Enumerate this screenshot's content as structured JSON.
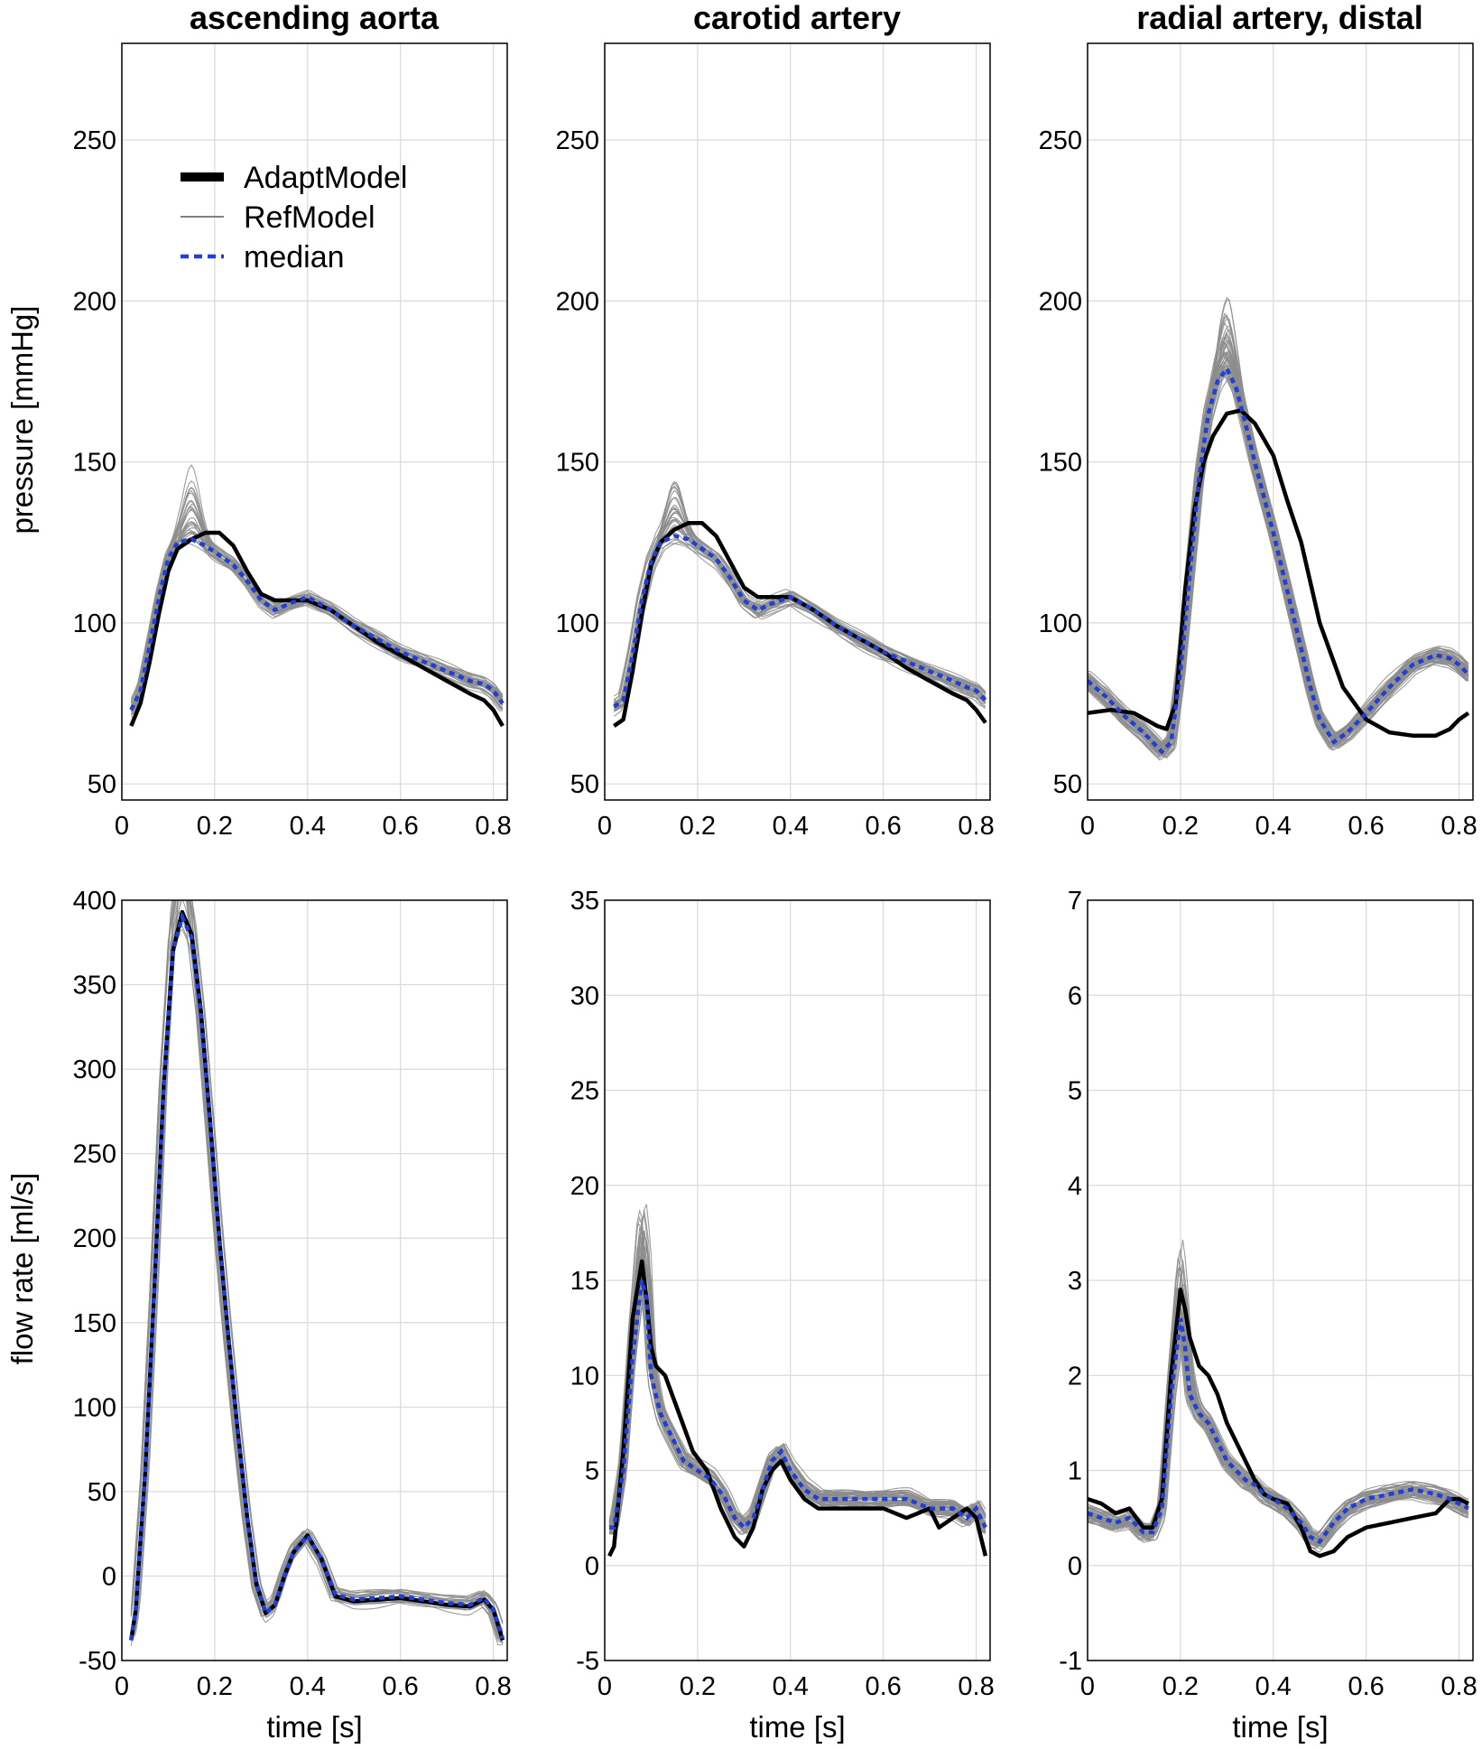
{
  "figure": {
    "column_titles": [
      "ascending aorta",
      "carotid artery",
      "radial artery, distal"
    ],
    "ylabel_top": "pressure [mmHg]",
    "ylabel_bottom": "flow rate  [ml/s]",
    "xlabel": "time [s]"
  },
  "legend": {
    "placement": "upper-left of top-left panel",
    "entries": [
      {
        "label": "AdaptModel",
        "color": "#000000",
        "style": "thick solid"
      },
      {
        "label": "RefModel",
        "color": "#808080",
        "style": "thin solid"
      },
      {
        "label": "median",
        "color": "#1f3fd6",
        "style": "dashed"
      }
    ]
  },
  "colors": {
    "adapt": "#000000",
    "ref": "#8c8c8c",
    "median": "#1f3fd6",
    "grid": "#d9d9d9"
  },
  "chart_data": [
    {
      "type": "line",
      "panel": "pressure-ascending-aorta",
      "title": "ascending aorta",
      "xlabel": "",
      "ylabel": "pressure [mmHg]",
      "xlim": [
        0,
        0.83
      ],
      "ylim": [
        45,
        280
      ],
      "xticks": [
        0,
        0.2,
        0.4,
        0.6,
        0.8
      ],
      "xtick_labels": [
        "0",
        "0.2",
        "0.4",
        "0.6",
        "0.8"
      ],
      "yticks": [
        50,
        100,
        150,
        200,
        250
      ],
      "ytick_labels": [
        "50",
        "100",
        "150",
        "200",
        "250"
      ],
      "grid": true,
      "ref_count": 30,
      "series": [
        {
          "name": "AdaptModel",
          "x": [
            0.02,
            0.04,
            0.06,
            0.08,
            0.1,
            0.12,
            0.15,
            0.18,
            0.21,
            0.24,
            0.27,
            0.3,
            0.33,
            0.36,
            0.4,
            0.45,
            0.5,
            0.55,
            0.6,
            0.65,
            0.7,
            0.75,
            0.78,
            0.8,
            0.82
          ],
          "y": [
            68,
            75,
            88,
            103,
            116,
            123,
            126,
            128,
            128,
            124,
            116,
            109,
            107,
            107,
            107,
            104,
            99,
            94,
            90,
            86,
            82,
            78,
            76,
            73,
            68
          ]
        },
        {
          "name": "median",
          "x": [
            0.02,
            0.04,
            0.06,
            0.08,
            0.1,
            0.12,
            0.15,
            0.18,
            0.21,
            0.24,
            0.27,
            0.3,
            0.33,
            0.36,
            0.4,
            0.45,
            0.5,
            0.55,
            0.6,
            0.65,
            0.7,
            0.75,
            0.78,
            0.8,
            0.82
          ],
          "y": [
            73,
            79,
            93,
            108,
            120,
            125,
            126,
            124,
            121,
            118,
            113,
            107,
            104,
            106,
            108,
            104,
            99,
            95,
            91,
            88,
            85,
            82,
            81,
            79,
            75
          ]
        }
      ]
    },
    {
      "type": "line",
      "panel": "pressure-carotid-artery",
      "title": "carotid artery",
      "xlabel": "",
      "ylabel": "",
      "xlim": [
        0,
        0.83
      ],
      "ylim": [
        45,
        280
      ],
      "xticks": [
        0,
        0.2,
        0.4,
        0.6,
        0.8
      ],
      "xtick_labels": [
        "0",
        "0.2",
        "0.4",
        "0.6",
        "0.8"
      ],
      "yticks": [
        50,
        100,
        150,
        200,
        250
      ],
      "ytick_labels": [
        "50",
        "100",
        "150",
        "200",
        "250"
      ],
      "grid": true,
      "ref_count": 30,
      "series": [
        {
          "name": "AdaptModel",
          "x": [
            0.02,
            0.04,
            0.06,
            0.08,
            0.1,
            0.12,
            0.15,
            0.18,
            0.21,
            0.24,
            0.27,
            0.3,
            0.33,
            0.36,
            0.4,
            0.45,
            0.5,
            0.55,
            0.6,
            0.65,
            0.7,
            0.75,
            0.78,
            0.8,
            0.82
          ],
          "y": [
            68,
            70,
            85,
            103,
            118,
            125,
            129,
            131,
            131,
            127,
            119,
            111,
            108,
            108,
            108,
            104,
            99,
            95,
            91,
            86,
            82,
            78,
            76,
            73,
            69
          ]
        },
        {
          "name": "median",
          "x": [
            0.02,
            0.04,
            0.06,
            0.08,
            0.1,
            0.12,
            0.15,
            0.18,
            0.21,
            0.24,
            0.27,
            0.3,
            0.33,
            0.36,
            0.4,
            0.45,
            0.5,
            0.55,
            0.6,
            0.65,
            0.7,
            0.75,
            0.78,
            0.8,
            0.82
          ],
          "y": [
            74,
            76,
            90,
            107,
            119,
            125,
            127,
            126,
            123,
            120,
            114,
            107,
            104,
            106,
            108,
            104,
            99,
            95,
            91,
            88,
            85,
            82,
            80,
            79,
            76
          ]
        }
      ]
    },
    {
      "type": "line",
      "panel": "pressure-radial-artery-distal",
      "title": "radial artery, distal",
      "xlabel": "",
      "ylabel": "",
      "xlim": [
        0,
        0.83
      ],
      "ylim": [
        45,
        280
      ],
      "xticks": [
        0,
        0.2,
        0.4,
        0.6,
        0.8
      ],
      "xtick_labels": [
        "0",
        "0.2",
        "0.4",
        "0.6",
        "0.8"
      ],
      "yticks": [
        50,
        100,
        150,
        200,
        250
      ],
      "ytick_labels": [
        "50",
        "100",
        "150",
        "200",
        "250"
      ],
      "grid": true,
      "ref_count": 45,
      "series": [
        {
          "name": "AdaptModel",
          "x": [
            0.0,
            0.05,
            0.1,
            0.15,
            0.17,
            0.19,
            0.21,
            0.23,
            0.25,
            0.27,
            0.3,
            0.33,
            0.36,
            0.4,
            0.43,
            0.46,
            0.5,
            0.55,
            0.6,
            0.65,
            0.7,
            0.75,
            0.78,
            0.8,
            0.82
          ],
          "y": [
            72,
            73,
            72,
            68,
            67,
            75,
            110,
            135,
            150,
            158,
            165,
            166,
            162,
            152,
            138,
            125,
            100,
            80,
            70,
            66,
            65,
            65,
            67,
            70,
            72
          ]
        },
        {
          "name": "median",
          "x": [
            0.0,
            0.04,
            0.08,
            0.12,
            0.16,
            0.18,
            0.2,
            0.22,
            0.24,
            0.26,
            0.28,
            0.3,
            0.32,
            0.34,
            0.36,
            0.4,
            0.44,
            0.48,
            0.5,
            0.53,
            0.56,
            0.6,
            0.65,
            0.7,
            0.75,
            0.78,
            0.8,
            0.82
          ],
          "y": [
            82,
            77,
            71,
            66,
            60,
            63,
            85,
            115,
            145,
            165,
            175,
            179,
            173,
            162,
            150,
            128,
            104,
            80,
            70,
            63,
            66,
            72,
            80,
            87,
            90,
            89,
            87,
            84
          ]
        }
      ]
    },
    {
      "type": "line",
      "panel": "flow-ascending-aorta",
      "title": "",
      "xlabel": "time [s]",
      "ylabel": "flow rate  [ml/s]",
      "xlim": [
        0,
        0.83
      ],
      "ylim": [
        -50,
        400
      ],
      "xticks": [
        0,
        0.2,
        0.4,
        0.6,
        0.8
      ],
      "xtick_labels": [
        "0",
        "0.2",
        "0.4",
        "0.6",
        "0.8"
      ],
      "yticks": [
        -50,
        0,
        50,
        100,
        150,
        200,
        250,
        300,
        350,
        400
      ],
      "ytick_labels": [
        "-50",
        "0",
        "50",
        "100",
        "150",
        "200",
        "250",
        "300",
        "350",
        "400"
      ],
      "grid": true,
      "ref_count": 20,
      "series": [
        {
          "name": "AdaptModel",
          "x": [
            0.02,
            0.03,
            0.05,
            0.07,
            0.09,
            0.11,
            0.13,
            0.15,
            0.17,
            0.19,
            0.21,
            0.23,
            0.25,
            0.27,
            0.29,
            0.31,
            0.33,
            0.35,
            0.37,
            0.4,
            0.43,
            0.46,
            0.5,
            0.55,
            0.6,
            0.65,
            0.7,
            0.75,
            0.78,
            0.8,
            0.82
          ],
          "y": [
            -38,
            -20,
            60,
            170,
            290,
            370,
            393,
            380,
            335,
            270,
            200,
            140,
            85,
            35,
            -5,
            -22,
            -17,
            0,
            14,
            24,
            10,
            -12,
            -15,
            -14,
            -13,
            -15,
            -17,
            -18,
            -14,
            -20,
            -38
          ]
        },
        {
          "name": "median",
          "x": [
            0.02,
            0.03,
            0.05,
            0.07,
            0.09,
            0.11,
            0.13,
            0.15,
            0.17,
            0.19,
            0.21,
            0.23,
            0.25,
            0.27,
            0.29,
            0.31,
            0.33,
            0.35,
            0.37,
            0.4,
            0.43,
            0.46,
            0.5,
            0.55,
            0.6,
            0.65,
            0.7,
            0.75,
            0.78,
            0.8,
            0.82
          ],
          "y": [
            -38,
            -20,
            60,
            170,
            290,
            370,
            390,
            378,
            333,
            268,
            200,
            140,
            85,
            35,
            -5,
            -22,
            -17,
            0,
            14,
            24,
            10,
            -11,
            -14,
            -13,
            -12,
            -14,
            -16,
            -17,
            -13,
            -20,
            -37
          ]
        }
      ]
    },
    {
      "type": "line",
      "panel": "flow-carotid-artery",
      "title": "",
      "xlabel": "time [s]",
      "ylabel": "",
      "xlim": [
        0,
        0.83
      ],
      "ylim": [
        -5,
        35
      ],
      "xticks": [
        0,
        0.2,
        0.4,
        0.6,
        0.8
      ],
      "xtick_labels": [
        "0",
        "0.2",
        "0.4",
        "0.6",
        "0.8"
      ],
      "yticks": [
        -5,
        0,
        5,
        10,
        15,
        20,
        25,
        30,
        35
      ],
      "ytick_labels": [
        "-5",
        "0",
        "5",
        "10",
        "15",
        "20",
        "25",
        "30",
        "35"
      ],
      "grid": true,
      "ref_count": 45,
      "series": [
        {
          "name": "AdaptModel",
          "x": [
            0.01,
            0.02,
            0.04,
            0.06,
            0.08,
            0.09,
            0.1,
            0.11,
            0.13,
            0.16,
            0.19,
            0.22,
            0.25,
            0.28,
            0.3,
            0.32,
            0.34,
            0.36,
            0.38,
            0.4,
            0.43,
            0.46,
            0.5,
            0.55,
            0.6,
            0.65,
            0.7,
            0.72,
            0.75,
            0.78,
            0.8,
            0.81,
            0.82
          ],
          "y": [
            0.5,
            1,
            6,
            13,
            16,
            14,
            11.5,
            10.5,
            10,
            8,
            6,
            5,
            3,
            1.5,
            1,
            2,
            4,
            5,
            5.5,
            4.5,
            3.5,
            3,
            3,
            3,
            3,
            2.5,
            3,
            2,
            2.5,
            3,
            2.5,
            1.5,
            0.5
          ]
        },
        {
          "name": "median",
          "x": [
            0.01,
            0.02,
            0.04,
            0.06,
            0.08,
            0.09,
            0.1,
            0.12,
            0.14,
            0.17,
            0.2,
            0.23,
            0.26,
            0.28,
            0.3,
            0.32,
            0.34,
            0.36,
            0.38,
            0.4,
            0.43,
            0.46,
            0.5,
            0.55,
            0.6,
            0.65,
            0.7,
            0.75,
            0.78,
            0.8,
            0.82
          ],
          "y": [
            2,
            2,
            5,
            11,
            15,
            14,
            10,
            8,
            7,
            5.5,
            5,
            4.5,
            3.5,
            2.5,
            2,
            2.5,
            4,
            5.5,
            6,
            5,
            4,
            3.5,
            3.5,
            3.5,
            3.5,
            3.5,
            3,
            3,
            2.5,
            3,
            2
          ]
        }
      ]
    },
    {
      "type": "line",
      "panel": "flow-radial-artery-distal",
      "title": "",
      "xlabel": "time [s]",
      "ylabel": "",
      "xlim": [
        0,
        0.83
      ],
      "ylim": [
        -1,
        7
      ],
      "xticks": [
        0,
        0.2,
        0.4,
        0.6,
        0.8
      ],
      "xtick_labels": [
        "0",
        "0.2",
        "0.4",
        "0.6",
        "0.8"
      ],
      "yticks": [
        -1,
        0,
        1,
        2,
        3,
        4,
        5,
        6,
        7
      ],
      "ytick_labels": [
        "-1",
        "0",
        "1",
        "2",
        "3",
        "4",
        "5",
        "6",
        "7"
      ],
      "grid": true,
      "ref_count": 45,
      "series": [
        {
          "name": "AdaptModel",
          "x": [
            0.0,
            0.03,
            0.06,
            0.09,
            0.12,
            0.14,
            0.16,
            0.18,
            0.2,
            0.21,
            0.22,
            0.24,
            0.26,
            0.28,
            0.3,
            0.32,
            0.34,
            0.36,
            0.38,
            0.4,
            0.43,
            0.46,
            0.48,
            0.5,
            0.53,
            0.56,
            0.6,
            0.65,
            0.7,
            0.75,
            0.78,
            0.8,
            0.82
          ],
          "y": [
            0.7,
            0.65,
            0.55,
            0.6,
            0.4,
            0.4,
            0.7,
            2,
            2.9,
            2.7,
            2.4,
            2.1,
            2,
            1.8,
            1.5,
            1.3,
            1.1,
            0.9,
            0.75,
            0.7,
            0.65,
            0.4,
            0.15,
            0.1,
            0.15,
            0.3,
            0.4,
            0.45,
            0.5,
            0.55,
            0.7,
            0.7,
            0.65
          ]
        },
        {
          "name": "median",
          "x": [
            0.0,
            0.03,
            0.06,
            0.09,
            0.12,
            0.14,
            0.16,
            0.18,
            0.2,
            0.21,
            0.22,
            0.24,
            0.26,
            0.28,
            0.3,
            0.32,
            0.34,
            0.36,
            0.38,
            0.4,
            0.43,
            0.46,
            0.48,
            0.5,
            0.53,
            0.56,
            0.6,
            0.65,
            0.7,
            0.75,
            0.78,
            0.8,
            0.82
          ],
          "y": [
            0.55,
            0.5,
            0.45,
            0.5,
            0.35,
            0.35,
            0.6,
            1.8,
            2.6,
            2.3,
            1.8,
            1.6,
            1.5,
            1.3,
            1.1,
            1,
            0.9,
            0.85,
            0.75,
            0.7,
            0.6,
            0.45,
            0.3,
            0.25,
            0.45,
            0.6,
            0.7,
            0.75,
            0.8,
            0.75,
            0.7,
            0.65,
            0.6
          ]
        }
      ]
    }
  ]
}
